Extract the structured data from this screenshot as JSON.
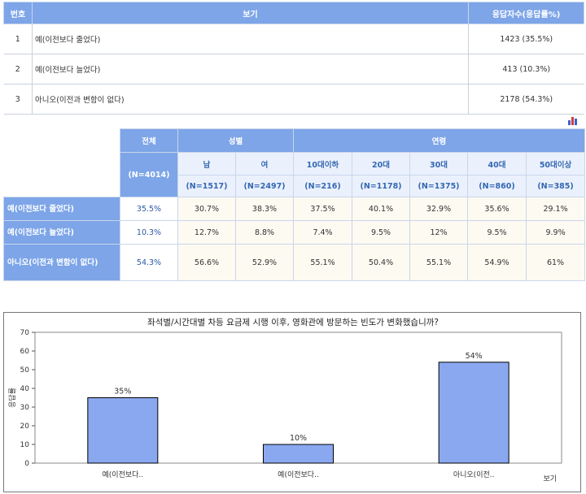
{
  "answer_table": {
    "headers": {
      "no": "번호",
      "label": "보기",
      "count": "응답자수(응답률%)"
    },
    "rows": [
      {
        "no": "1",
        "label": "예(이전보다 줄었다)",
        "count": "1423 (35.5%)"
      },
      {
        "no": "2",
        "label": "예(이전보다 늘었다)",
        "count": "413 (10.3%)"
      },
      {
        "no": "3",
        "label": "아니오(이전과 변함이 없다)",
        "count": "2178 (54.3%)"
      }
    ]
  },
  "chart_icon": "bar-chart-icon",
  "cross_table": {
    "total_header": "전체",
    "total_n": "(N=4014)",
    "gender_header": "성별",
    "age_header": "연령",
    "groups": [
      {
        "label": "남",
        "n": "(N=1517)"
      },
      {
        "label": "여",
        "n": "(N=2497)"
      },
      {
        "label": "10대이하",
        "n": "(N=216)"
      },
      {
        "label": "20대",
        "n": "(N=1178)"
      },
      {
        "label": "30대",
        "n": "(N=1375)"
      },
      {
        "label": "40대",
        "n": "(N=860)"
      },
      {
        "label": "50대이상",
        "n": "(N=385)"
      }
    ],
    "rows": [
      {
        "label": "예(이전보다 줄었다)",
        "total": "35.5%",
        "cells": [
          "30.7%",
          "38.3%",
          "37.5%",
          "40.1%",
          "32.9%",
          "35.6%",
          "29.1%"
        ]
      },
      {
        "label": "예(이전보다 늘었다)",
        "total": "10.3%",
        "cells": [
          "12.7%",
          "8.8%",
          "7.4%",
          "9.5%",
          "12%",
          "9.5%",
          "9.9%"
        ]
      },
      {
        "label": "아니오(이전과 변함이 없다)",
        "total": "54.3%",
        "cells": [
          "56.6%",
          "52.9%",
          "55.1%",
          "50.4%",
          "55.1%",
          "54.9%",
          "61%"
        ]
      }
    ]
  },
  "colors": {
    "header_bg": "#7da5e8",
    "bar_fill": "#8aa8f0",
    "bar_stroke": "#000000"
  },
  "chart_data": {
    "type": "bar",
    "title": "좌석별/시간대별 차등 요금제 시행 이후, 영화관에 방문하는 빈도가 변화했습니까?",
    "categories": [
      "예(이전보다..",
      "예(이전보다..",
      "아니오(이전.."
    ],
    "values": [
      35,
      10,
      54
    ],
    "data_labels": [
      "35%",
      "10%",
      "54%"
    ],
    "ylabel": "응답률",
    "xlabel": "보기",
    "ylim": [
      0,
      70
    ],
    "yticks": [
      0,
      10,
      20,
      30,
      40,
      50,
      60,
      70
    ],
    "grid": false
  }
}
